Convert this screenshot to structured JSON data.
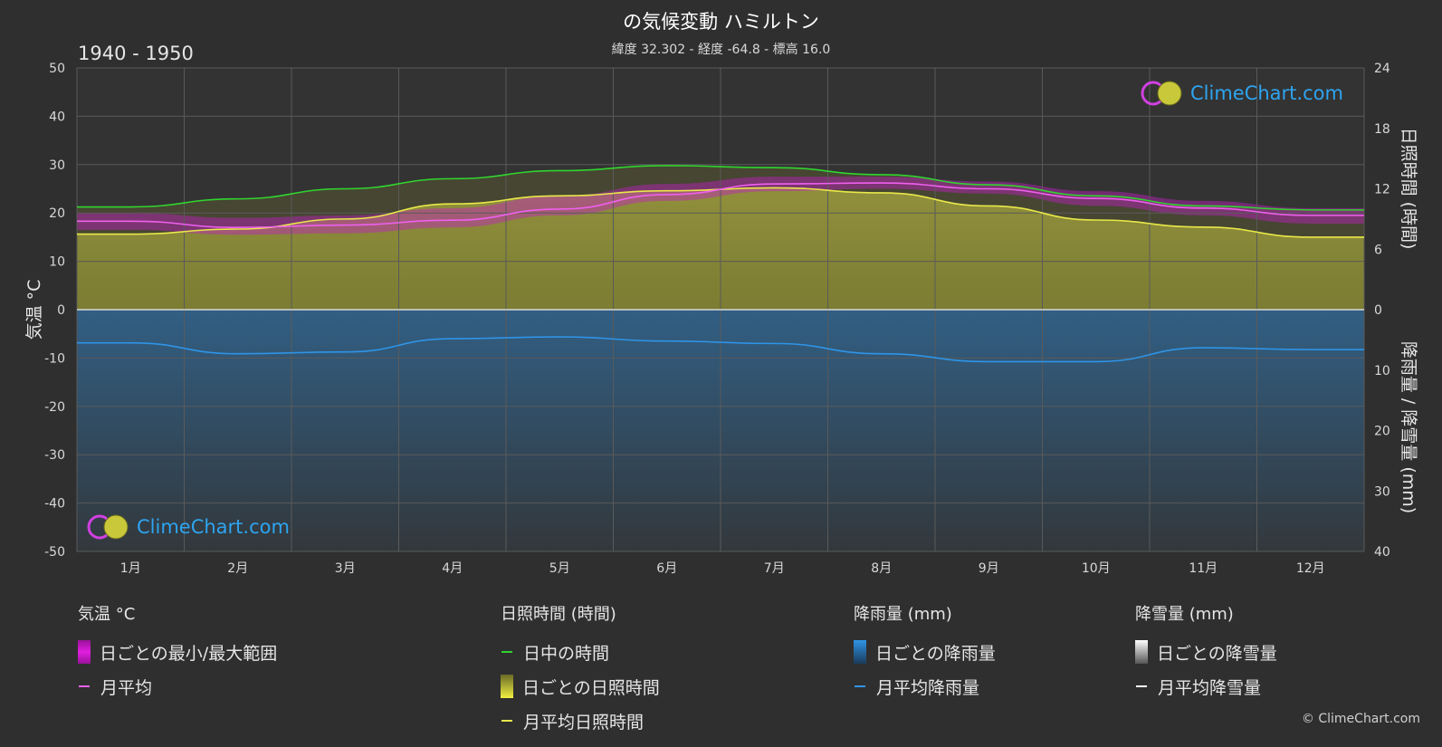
{
  "header": {
    "title": "の気候変動 ハミルトン",
    "subtitle": "緯度 32.302 - 経度 -64.8 - 標高 16.0",
    "period": "1940 - 1950"
  },
  "axes": {
    "left_label": "気温 °C",
    "right_top_label": "日照時間 (時間)",
    "right_bottom_label": "降雨量 / 降雪量 (mm)",
    "left_ticks": [
      "50",
      "40",
      "30",
      "20",
      "10",
      "0",
      "-10",
      "-20",
      "-30",
      "-40",
      "-50"
    ],
    "right_top_ticks": [
      "24",
      "18",
      "12",
      "6",
      "0"
    ],
    "right_bottom_ticks": [
      "10",
      "20",
      "30",
      "40"
    ]
  },
  "chart_data": {
    "type": "line",
    "categories": [
      "1月",
      "2月",
      "3月",
      "4月",
      "5月",
      "6月",
      "7月",
      "8月",
      "9月",
      "10月",
      "11月",
      "12月"
    ],
    "temp_ylim": [
      -50,
      50
    ],
    "sun_ylim": [
      0,
      24
    ],
    "precip_ylim": [
      0,
      40
    ],
    "series": [
      {
        "name": "日中の時間",
        "axis": "sun",
        "color": "#31d42f",
        "values": [
          10.2,
          11.0,
          12.0,
          13.0,
          13.8,
          14.3,
          14.1,
          13.4,
          12.4,
          11.3,
          10.3,
          9.9
        ]
      },
      {
        "name": "月平均日照時間",
        "axis": "sun",
        "color": "#e8e84a",
        "values": [
          7.5,
          8.0,
          9.0,
          10.5,
          11.3,
          11.8,
          12.1,
          11.6,
          10.3,
          8.9,
          8.2,
          7.2
        ]
      },
      {
        "name": "月平均",
        "axis": "temp",
        "color": "#ee60ee",
        "values": [
          18.3,
          17.0,
          17.5,
          18.5,
          20.8,
          23.8,
          26.0,
          26.2,
          25.0,
          23.0,
          21.0,
          19.5
        ]
      },
      {
        "name": "月平均降雨量",
        "axis": "precip",
        "color": "#2f94e6",
        "values": [
          5.5,
          7.3,
          7.0,
          4.8,
          4.5,
          5.2,
          5.6,
          7.3,
          8.6,
          8.6,
          6.3,
          6.6
        ]
      },
      {
        "name": "月平均降雪量",
        "axis": "precip",
        "color": "#ffffff",
        "values": [
          0,
          0,
          0,
          0,
          0,
          0,
          0,
          0,
          0,
          0,
          0,
          0
        ]
      }
    ],
    "temp_range": {
      "name": "日ごとの最小/最大範囲",
      "min": [
        16.5,
        15.5,
        15.8,
        17.0,
        19.5,
        22.5,
        24.5,
        25.0,
        24.0,
        21.5,
        19.5,
        17.8
      ],
      "max": [
        20.0,
        19.0,
        19.5,
        21.0,
        23.5,
        26.0,
        27.5,
        27.5,
        26.5,
        24.5,
        22.5,
        21.0
      ]
    },
    "grid": true
  },
  "legend": {
    "temp": {
      "head": "気温 °C",
      "items": [
        "日ごとの最小/最大範囲",
        "月平均"
      ]
    },
    "sun": {
      "head": "日照時間 (時間)",
      "items": [
        "日中の時間",
        "日ごとの日照時間",
        "月平均日照時間"
      ]
    },
    "rain": {
      "head": "降雨量 (mm)",
      "items": [
        "日ごとの降雨量",
        "月平均降雨量"
      ]
    },
    "snow": {
      "head": "降雪量 (mm)",
      "items": [
        "日ごとの降雪量",
        "月平均降雪量"
      ]
    }
  },
  "colors": {
    "background": "#2f2f2f",
    "plot_bg": "#333333",
    "daylight": "#31d42f",
    "sunshine": "#e8e84a",
    "sunshine_fill": "#9c9c3a",
    "temp": "#ee60ee",
    "temp_range": "#c020c0",
    "rain": "#2f94e6",
    "snow": "#ffffff",
    "brand": "#2ea4f0"
  },
  "branding": {
    "logo_text": "ClimeChart.com",
    "copyright": "© ClimeChart.com"
  }
}
